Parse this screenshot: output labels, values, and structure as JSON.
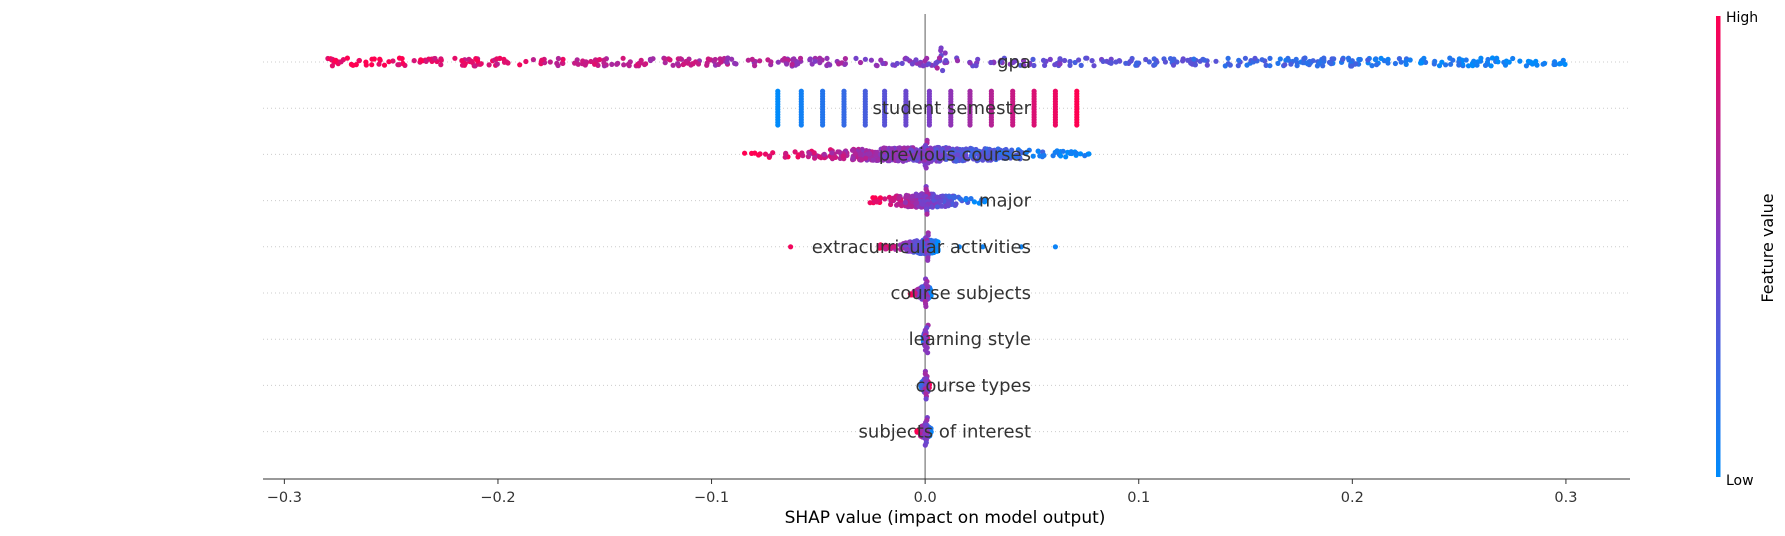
{
  "chart_data": {
    "type": "scatter",
    "subtype": "shap-beeswarm",
    "title": "",
    "xlabel": "SHAP value (impact on model output)",
    "xlim": [
      -0.31,
      0.33
    ],
    "xticks": [
      -0.3,
      -0.2,
      -0.1,
      0.0,
      0.1,
      0.2,
      0.3
    ],
    "xtick_labels": [
      "−0.3",
      "−0.2",
      "−0.1",
      "0.0",
      "0.1",
      "0.2",
      "0.3"
    ],
    "zero_line": true,
    "grid": "dotted horizontal row guides",
    "features": [
      {
        "name": "gpa",
        "spread": "continuous",
        "min": -0.28,
        "max": 0.3,
        "low_value_side": "positive",
        "zero_pile": true
      },
      {
        "name": "student semester",
        "spread": "discrete",
        "columns": [
          -0.069,
          -0.058,
          -0.048,
          -0.038,
          -0.028,
          -0.019,
          -0.009,
          0.002,
          0.012,
          0.021,
          0.031,
          0.041,
          0.051,
          0.061,
          0.071
        ],
        "low_value_side": "negative"
      },
      {
        "name": "previous courses",
        "spread": "continuous",
        "min": -0.085,
        "max": 0.077,
        "low_value_side": "positive",
        "zero_pile": true
      },
      {
        "name": "major",
        "spread": "continuous",
        "min": -0.026,
        "max": 0.029,
        "low_value_side": "positive",
        "zero_pile": true
      },
      {
        "name": "extracurricular activities",
        "spread": "continuous",
        "min": -0.022,
        "max": 0.006,
        "outliers": [
          -0.063,
          0.016,
          0.027,
          0.045,
          0.061
        ],
        "low_value_side": "positive",
        "zero_pile": true
      },
      {
        "name": "course subjects",
        "spread": "continuous",
        "min": -0.007,
        "max": 0.003,
        "low_value_side": "positive",
        "zero_pile": true
      },
      {
        "name": "learning style",
        "spread": "continuous",
        "min": -0.001,
        "max": 0.001,
        "low_value_side": "negative",
        "zero_pile": true
      },
      {
        "name": "course types",
        "spread": "continuous",
        "min": -0.002,
        "max": 0.002,
        "low_value_side": "negative",
        "zero_pile": true
      },
      {
        "name": "subjects of interest",
        "spread": "continuous",
        "min": -0.004,
        "max": 0.003,
        "low_value_side": "positive",
        "zero_pile": true
      }
    ],
    "colorbar": {
      "title": "Feature value",
      "high_label": "High",
      "low_label": "Low",
      "colors": {
        "low": "#008bfb",
        "mid": "#7c3dc7",
        "high": "#ff0051"
      }
    }
  }
}
